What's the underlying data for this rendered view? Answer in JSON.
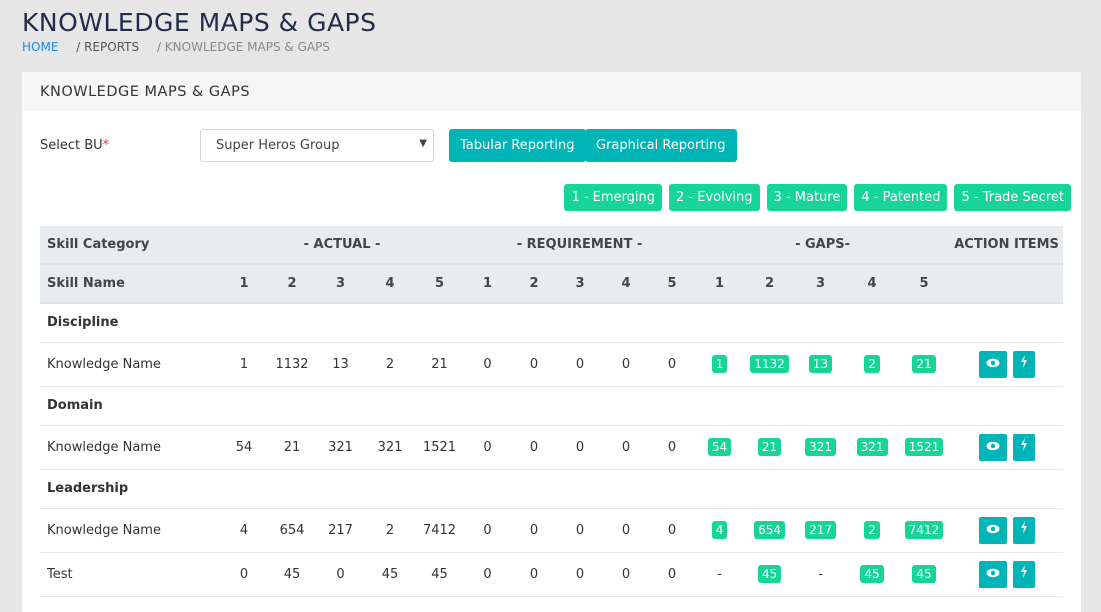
{
  "page": {
    "title": "KNOWLEDGE MAPS & GAPS",
    "breadcrumb": [
      "HOME",
      "/ REPORTS",
      "/ KNOWLEDGE MAPS & GAPS"
    ]
  },
  "card": {
    "title": "KNOWLEDGE MAPS & GAPS",
    "select_label": "Select BU",
    "required": "*",
    "select_value": "Super Heros Group",
    "tabular": "Tabular Reporting",
    "graphical": "Graphical Reporting"
  },
  "legend": [
    "1 - Emerging",
    "2 - Evolving",
    "3 - Mature",
    "4 - Patented",
    "5 - Trade Secret"
  ],
  "colors": {
    "teal": "#00b5b8",
    "green": "#17d499"
  },
  "table": {
    "h1": {
      "cat": "Skill Category",
      "actual": "- ACTUAL -",
      "req": "- REQUIREMENT -",
      "gaps": "- GAPS-",
      "action": "ACTION ITEMS"
    },
    "h2": {
      "name": "Skill Name",
      "levels": [
        "1",
        "2",
        "3",
        "4",
        "5",
        "1",
        "2",
        "3",
        "4",
        "5",
        "1",
        "2",
        "3",
        "4",
        "5"
      ]
    },
    "groups": [
      {
        "category": "Discipline",
        "rows": [
          {
            "name": "Knowledge Name",
            "actual": [
              "1",
              "1132",
              "13",
              "2",
              "21"
            ],
            "req": [
              "0",
              "0",
              "0",
              "0",
              "0"
            ],
            "gaps": [
              "1",
              "1132",
              "13",
              "2",
              "21"
            ]
          }
        ]
      },
      {
        "category": "Domain",
        "rows": [
          {
            "name": "Knowledge Name",
            "actual": [
              "54",
              "21",
              "321",
              "321",
              "1521"
            ],
            "req": [
              "0",
              "0",
              "0",
              "0",
              "0"
            ],
            "gaps": [
              "54",
              "21",
              "321",
              "321",
              "1521"
            ]
          }
        ]
      },
      {
        "category": "Leadership",
        "rows": [
          {
            "name": "Knowledge Name",
            "actual": [
              "4",
              "654",
              "217",
              "2",
              "7412"
            ],
            "req": [
              "0",
              "0",
              "0",
              "0",
              "0"
            ],
            "gaps": [
              "4",
              "654",
              "217",
              "2",
              "7412"
            ]
          },
          {
            "name": "Test",
            "actual": [
              "0",
              "45",
              "0",
              "45",
              "45"
            ],
            "req": [
              "0",
              "0",
              "0",
              "0",
              "0"
            ],
            "gaps": [
              "-",
              "45",
              "-",
              "45",
              "45"
            ]
          }
        ]
      }
    ]
  }
}
